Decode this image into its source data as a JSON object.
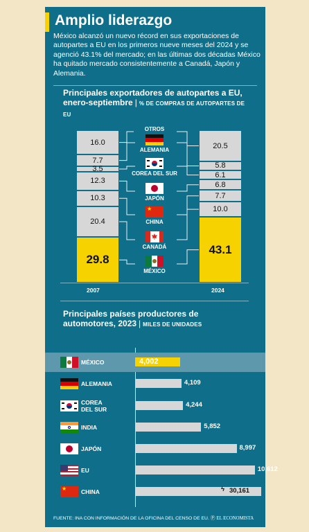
{
  "header": {
    "title": "Amplio liderazgo",
    "intro": "México alcanzó un nuevo récord en sus exportaciones de autopartes a EU en los primeros nueve meses del 2024 y se agenció 43.1% del mercado; en las últimas dos décadas México ha quitado mercado consistentemente a Canadá, Japón y Alemania."
  },
  "colors": {
    "background": "#0f6f8a",
    "page": "#f3e6c7",
    "highlight": "#f6d200",
    "bar": "#d7d7d7"
  },
  "chart_data": [
    {
      "type": "bar",
      "stacked": true,
      "title": "Principales exportadores de autopartes a EU, enero-septiembre",
      "unit": "% DE COMPRAS DE AUTOPARTES DE EU",
      "categories": [
        "2007",
        "2024"
      ],
      "series": [
        {
          "name": "OTROS",
          "flag": "none",
          "values": [
            16.0,
            20.5
          ]
        },
        {
          "name": "ALEMANIA",
          "flag": "germany-flag-icon",
          "values": [
            7.7,
            5.8
          ]
        },
        {
          "name": "COREA DEL SUR",
          "flag": "korea-flag-icon",
          "values": [
            3.5,
            6.1
          ]
        },
        {
          "name": "JAPÓN",
          "flag": "japan-flag-icon",
          "values": [
            12.3,
            6.8
          ]
        },
        {
          "name": "CHINA",
          "flag": "china-flag-icon",
          "values": [
            10.3,
            7.7
          ]
        },
        {
          "name": "CANADÁ",
          "flag": "canada-flag-icon",
          "values": [
            20.4,
            10.0
          ]
        },
        {
          "name": "MÉXICO",
          "flag": "mexico-flag-icon",
          "values": [
            29.8,
            43.1
          ]
        }
      ],
      "labels": {
        "2007": [
          "16.0",
          "7.7",
          "3.5",
          "12.3",
          "10.3",
          "20.4",
          "29.8"
        ],
        "2024": [
          "20.5",
          "5.8",
          "6.1",
          "6.8",
          "7.7",
          "10.0",
          "43.1"
        ]
      },
      "highlight_series": "MÉXICO"
    },
    {
      "type": "bar",
      "orientation": "horizontal",
      "title": "Principales países productores de automotores, 2023",
      "unit": "MILES DE UNIDADES",
      "categories": [
        "MÉXICO",
        "ALEMANIA",
        "COREA DEL SUR",
        "INDIA",
        "JAPÓN",
        "EU",
        "CHINA"
      ],
      "flags": [
        "mexico-flag-icon",
        "germany-flag-icon",
        "korea-flag-icon",
        "india-flag-icon",
        "japan-flag-icon",
        "usa-flag-icon",
        "china-flag-icon"
      ],
      "values": [
        4002,
        4109,
        4244,
        5852,
        8997,
        10612,
        30161
      ],
      "value_labels": [
        "4,002",
        "4,109",
        "4,244",
        "5,852",
        "8,997",
        "10,612",
        "30,161"
      ],
      "axis_break_on": "CHINA",
      "highlight": "MÉXICO"
    }
  ],
  "footer": {
    "source": "FUENTE: INA CON INFORMACIÓN DE LA OFICINA DEL CENSO DE EU.",
    "publisher": "EL ECONOMISTA"
  }
}
